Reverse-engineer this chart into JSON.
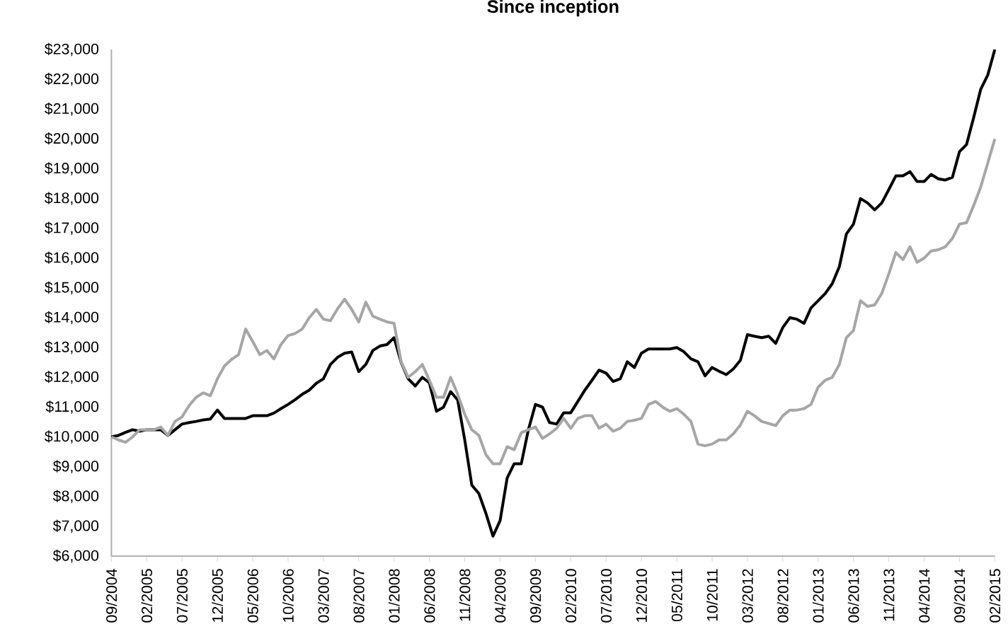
{
  "chart_data": {
    "type": "line",
    "title": "Since inception",
    "categories": [
      "09/2004",
      null,
      null,
      null,
      null,
      "02/2005",
      null,
      null,
      null,
      null,
      "07/2005",
      null,
      null,
      null,
      null,
      "12/2005",
      null,
      null,
      null,
      null,
      "05/2006",
      null,
      null,
      null,
      null,
      "10/2006",
      null,
      null,
      null,
      null,
      "03/2007",
      null,
      null,
      null,
      null,
      "08/2007",
      null,
      null,
      null,
      null,
      "01/2008",
      null,
      null,
      null,
      null,
      "06/2008",
      null,
      null,
      null,
      null,
      "11/2008",
      null,
      null,
      null,
      null,
      "04/2009",
      null,
      null,
      null,
      null,
      "09/2009",
      null,
      null,
      null,
      null,
      "02/2010",
      null,
      null,
      null,
      null,
      "07/2010",
      null,
      null,
      null,
      null,
      "12/2010",
      null,
      null,
      null,
      null,
      "05/2011",
      null,
      null,
      null,
      null,
      "10/2011",
      null,
      null,
      null,
      null,
      "03/2012",
      null,
      null,
      null,
      null,
      "08/2012",
      null,
      null,
      null,
      null,
      "01/2013",
      null,
      null,
      null,
      null,
      "06/2013",
      null,
      null,
      null,
      null,
      "11/2013",
      null,
      null,
      null,
      null,
      "04/2014",
      null,
      null,
      null,
      null,
      "09/2014",
      null,
      null,
      null,
      null,
      "02/2015"
    ],
    "series": [
      {
        "color": "#000000",
        "values": [
          10000,
          10050,
          10150,
          10240,
          10190,
          10240,
          10240,
          10240,
          10050,
          10240,
          10430,
          10480,
          10520,
          10570,
          10600,
          10900,
          10620,
          10620,
          10620,
          10620,
          10710,
          10710,
          10710,
          10800,
          10950,
          11090,
          11250,
          11430,
          11570,
          11800,
          11950,
          12430,
          12670,
          12810,
          12850,
          12190,
          12430,
          12900,
          13050,
          13100,
          13330,
          12500,
          11950,
          11710,
          12000,
          11810,
          10860,
          11000,
          11520,
          11240,
          9900,
          8380,
          8100,
          7430,
          6670,
          7190,
          8620,
          9100,
          9100,
          10240,
          11090,
          11000,
          10480,
          10430,
          10810,
          10810,
          11190,
          11570,
          11900,
          12240,
          12140,
          11860,
          11950,
          12520,
          12330,
          12810,
          12950,
          12950,
          12950,
          12950,
          13000,
          12860,
          12620,
          12520,
          12050,
          12330,
          12200,
          12090,
          12280,
          12570,
          13430,
          13380,
          13330,
          13380,
          13140,
          13670,
          14000,
          13950,
          13810,
          14330,
          14570,
          14810,
          15140,
          15710,
          16810,
          17140,
          18000,
          17850,
          17620,
          17850,
          18300,
          18760,
          18760,
          18900,
          18570,
          18570,
          18810,
          18660,
          18620,
          18710,
          19570,
          19810,
          20710,
          21660,
          22140,
          23000
        ]
      },
      {
        "color": "#a6a6a6",
        "values": [
          10000,
          9900,
          9820,
          10000,
          10240,
          10240,
          10240,
          10330,
          10050,
          10520,
          10670,
          11050,
          11330,
          11480,
          11380,
          11950,
          12380,
          12600,
          12760,
          13620,
          13200,
          12760,
          12900,
          12620,
          13100,
          13400,
          13470,
          13620,
          14000,
          14280,
          13950,
          13900,
          14300,
          14620,
          14280,
          13860,
          14520,
          14050,
          13950,
          13860,
          13810,
          12520,
          12000,
          12190,
          12430,
          11900,
          11330,
          11330,
          12000,
          11430,
          10760,
          10240,
          10050,
          9400,
          9100,
          9100,
          9670,
          9570,
          10140,
          10240,
          10330,
          9950,
          10100,
          10290,
          10620,
          10290,
          10620,
          10710,
          10710,
          10290,
          10430,
          10190,
          10290,
          10520,
          10560,
          10620,
          11090,
          11190,
          11000,
          10860,
          10950,
          10760,
          10520,
          9760,
          9700,
          9760,
          9900,
          9900,
          10100,
          10400,
          10860,
          10710,
          10520,
          10450,
          10380,
          10710,
          10900,
          10900,
          10950,
          11090,
          11670,
          11900,
          12000,
          12430,
          13330,
          13570,
          14570,
          14380,
          14430,
          14810,
          15470,
          16190,
          15950,
          16380,
          15860,
          16000,
          16240,
          16280,
          16380,
          16660,
          17140,
          17190,
          17760,
          18380,
          19190,
          20000
        ]
      }
    ],
    "ylim": [
      6000,
      23000
    ],
    "yticks": [
      {
        "value": 6000,
        "label": "$6,000"
      },
      {
        "value": 7000,
        "label": "$7,000"
      },
      {
        "value": 8000,
        "label": "$8,000"
      },
      {
        "value": 9000,
        "label": "$9,000"
      },
      {
        "value": 10000,
        "label": "$10,000"
      },
      {
        "value": 11000,
        "label": "$11,000"
      },
      {
        "value": 12000,
        "label": "$12,000"
      },
      {
        "value": 13000,
        "label": "$13,000"
      },
      {
        "value": 14000,
        "label": "$14,000"
      },
      {
        "value": 15000,
        "label": "$15,000"
      },
      {
        "value": 16000,
        "label": "$16,000"
      },
      {
        "value": 17000,
        "label": "$17,000"
      },
      {
        "value": 18000,
        "label": "$18,000"
      },
      {
        "value": 19000,
        "label": "$19,000"
      },
      {
        "value": 20000,
        "label": "$20,000"
      },
      {
        "value": 21000,
        "label": "$21,000"
      },
      {
        "value": 22000,
        "label": "$22,000"
      },
      {
        "value": 23000,
        "label": "$23,000"
      }
    ],
    "marker": "none",
    "line_style": "solid"
  }
}
